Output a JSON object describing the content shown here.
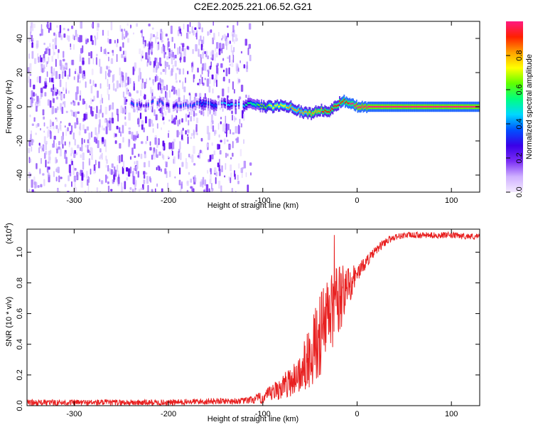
{
  "title": "C2E2.2025.221.06.52.G21",
  "colors": {
    "snr_line": "#e82020",
    "spectrogram_low": "#5a00f0",
    "spectrogram_ridge": "#e02020"
  },
  "chart_data": [
    {
      "type": "heatmap",
      "xlabel": "Height of straight line (km)",
      "ylabel": "Frequency (Hz)",
      "xlim": [
        -350,
        130
      ],
      "ylim": [
        -50,
        50
      ],
      "xticks": [
        -300,
        -200,
        -100,
        0,
        100
      ],
      "yticks": [
        -40,
        -20,
        0,
        20,
        40
      ],
      "colorbar": {
        "label": "Normalized spectral amplitude",
        "range": [
          0,
          1
        ],
        "ticks": [
          "0.0",
          "0.2",
          "0.4",
          "0.6",
          "0.8"
        ],
        "tick_values": [
          0,
          0.2,
          0.4,
          0.6,
          0.8
        ],
        "colormap": [
          "#f4eaff",
          "#cfb0ff",
          "#7a2cf5",
          "#3a00e8",
          "#0050ff",
          "#00d8ff",
          "#00ff80",
          "#60ff00",
          "#ffff00",
          "#ffa000",
          "#ff2000",
          "#ff1a80"
        ]
      },
      "ridge": {
        "x": [
          -240,
          -230,
          -210,
          -200,
          -180,
          -165,
          -150,
          -130,
          -120,
          -110,
          -100,
          -90,
          -80,
          -70,
          -60,
          -50,
          -40,
          -30,
          -20,
          -15,
          -10,
          0,
          10,
          130
        ],
        "frequency": [
          2,
          1,
          3,
          1,
          1,
          2,
          1,
          2,
          1,
          2,
          0,
          0,
          1,
          0,
          -3,
          -4,
          -2,
          -3,
          2,
          4,
          2,
          0,
          0,
          0
        ],
        "amplitude": [
          0.35,
          0.3,
          0.35,
          0.3,
          0.35,
          0.4,
          0.4,
          0.45,
          0.5,
          0.55,
          0.65,
          0.7,
          0.75,
          0.8,
          0.8,
          0.85,
          0.85,
          0.9,
          0.9,
          0.92,
          0.95,
          1.0,
          1.0,
          1.0
        ]
      },
      "noise_region": {
        "x_range": [
          -350,
          -110
        ],
        "frequency_range": [
          -50,
          50
        ]
      }
    },
    {
      "type": "line",
      "xlabel": "Height of straight line (km)",
      "ylabel": "SNR (10 * v/v)",
      "yscale_label": "(x10",
      "yscale_exp": "4",
      "yscale_suffix": ")",
      "xlim": [
        -350,
        130
      ],
      "ylim": [
        0,
        1.15
      ],
      "xticks": [
        -300,
        -200,
        -100,
        0,
        100
      ],
      "yticks": [
        "0.0",
        "0.2",
        "0.4",
        "0.6",
        "0.8",
        "1.0"
      ],
      "ytick_values": [
        0,
        0.2,
        0.4,
        0.6,
        0.8,
        1.0
      ],
      "series": [
        {
          "x": [
            -350,
            -300,
            -250,
            -200,
            -150,
            -120,
            -100,
            -90,
            -80,
            -70,
            -60,
            -50,
            -40,
            -30,
            -20,
            -10,
            0,
            10,
            20,
            30,
            40,
            50,
            70,
            100,
            130
          ],
          "values": [
            0.02,
            0.02,
            0.02,
            0.02,
            0.03,
            0.03,
            0.05,
            0.08,
            0.12,
            0.16,
            0.22,
            0.32,
            0.45,
            0.58,
            0.67,
            0.78,
            0.86,
            0.94,
            1.01,
            1.07,
            1.1,
            1.11,
            1.11,
            1.11,
            1.1
          ],
          "noise": [
            0.02,
            0.02,
            0.02,
            0.02,
            0.02,
            0.02,
            0.04,
            0.06,
            0.08,
            0.1,
            0.14,
            0.2,
            0.28,
            0.3,
            0.25,
            0.15,
            0.06,
            0.04,
            0.03,
            0.03,
            0.02,
            0.02,
            0.02,
            0.02,
            0.02
          ]
        }
      ]
    }
  ]
}
